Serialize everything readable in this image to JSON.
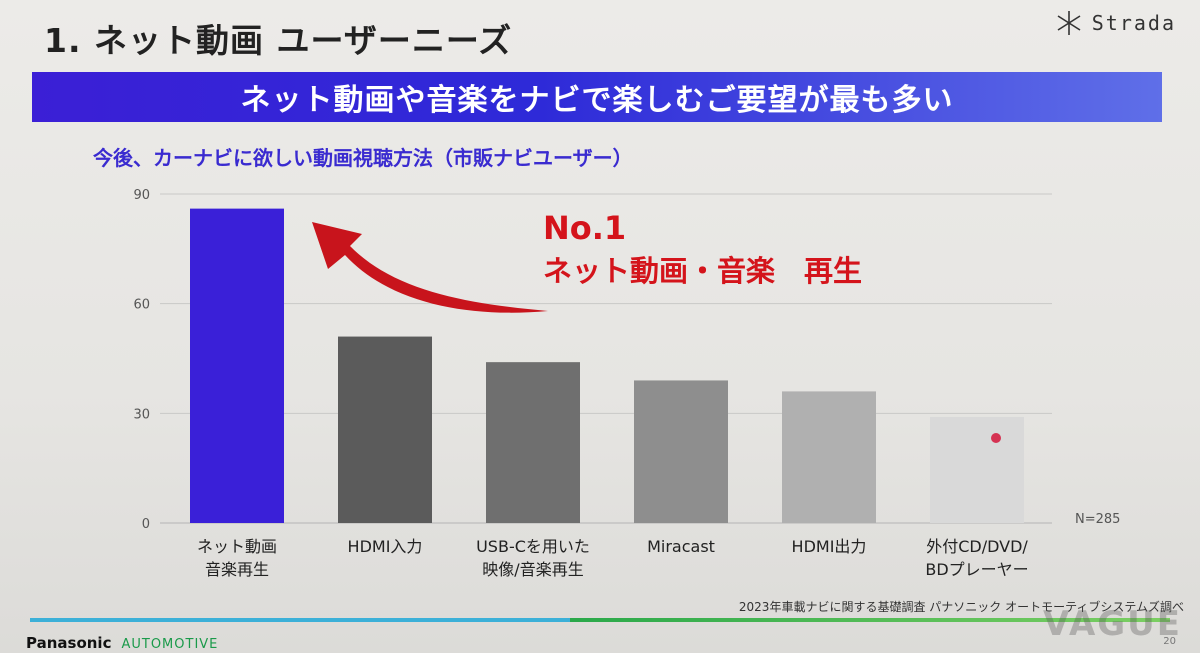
{
  "slide": {
    "title": "1. ネット動画 ユーザーニーズ",
    "brand": "Strada",
    "banner": "ネット動画や音楽をナビで楽しむご要望が最も多い",
    "subtitle": "今後、カーナビに欲しい動画視聴方法（市販ナビユーザー）",
    "callout_num": "No.1",
    "callout_text": "ネット動画・音楽　再生",
    "sample_size": "N=285",
    "source": "2023年車載ナビに関する基礎調査 パナソニック オートモーティブシステムズ調べ",
    "footer_brand": "Panasonic",
    "footer_sub": "AUTOMOTIVE",
    "watermark": "VAGUE",
    "page_number": "20"
  },
  "chart_data": {
    "type": "bar",
    "title": "今後、カーナビに欲しい動画視聴方法（市販ナビユーザー）",
    "categories": [
      [
        "ネット動画",
        "音楽再生"
      ],
      [
        "HDMI入力"
      ],
      [
        "USB-Cを用いた",
        "映像/音楽再生"
      ],
      [
        "Miracast"
      ],
      [
        "HDMI出力"
      ],
      [
        "外付CD/DVD/",
        "BDプレーヤー"
      ]
    ],
    "values": [
      86,
      51,
      44,
      39,
      36,
      29
    ],
    "ylim": [
      0,
      90
    ],
    "yticks": [
      0,
      30,
      60,
      90
    ],
    "grid": true,
    "bar_colors": [
      "#3a20d8",
      "#5b5b5b",
      "#6f6f6f",
      "#8e8e8e",
      "#b0b0b0",
      "#d9d9d9"
    ]
  }
}
